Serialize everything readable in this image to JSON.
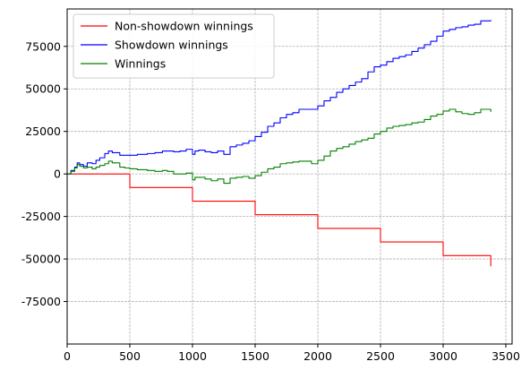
{
  "chart_data": {
    "type": "line",
    "title": "",
    "xlabel": "",
    "ylabel": "",
    "xlim": [
      0,
      3550
    ],
    "ylim": [
      -100000,
      97000
    ],
    "x_ticks": [
      0,
      500,
      1000,
      1500,
      2000,
      2500,
      3000,
      3500
    ],
    "y_ticks": [
      -75000,
      -50000,
      -25000,
      0,
      25000,
      50000,
      75000
    ],
    "grid": true,
    "legend_position": "top-left",
    "series": [
      {
        "name": "Non-showdown winnings",
        "color": "#ff0000",
        "x": [
          0,
          500,
          1000,
          1500,
          2000,
          2500,
          3000,
          3380
        ],
        "y": [
          0,
          -8000,
          -16000,
          -24000,
          -32000,
          -40000,
          -48000,
          -54300
        ]
      },
      {
        "name": "Showdown winnings",
        "color": "#0000ff",
        "x": [
          0,
          30,
          60,
          80,
          100,
          130,
          160,
          200,
          230,
          260,
          300,
          330,
          360,
          390,
          420,
          460,
          500,
          560,
          640,
          700,
          760,
          800,
          850,
          900,
          950,
          1000,
          1020,
          1050,
          1100,
          1150,
          1200,
          1250,
          1300,
          1350,
          1400,
          1450,
          1500,
          1550,
          1600,
          1650,
          1700,
          1750,
          1800,
          1850,
          1900,
          1950,
          2000,
          2050,
          2100,
          2150,
          2200,
          2250,
          2300,
          2350,
          2400,
          2450,
          2500,
          2550,
          2600,
          2650,
          2700,
          2750,
          2800,
          2850,
          2900,
          2950,
          3000,
          3050,
          3100,
          3150,
          3200,
          3250,
          3300,
          3380
        ],
        "y": [
          0,
          2000,
          4000,
          6500,
          5500,
          4500,
          6500,
          6000,
          8000,
          9500,
          12000,
          13500,
          12500,
          12500,
          11000,
          11000,
          11000,
          11500,
          12000,
          12500,
          13500,
          13500,
          13000,
          13500,
          14500,
          11500,
          13500,
          14000,
          13000,
          12500,
          13500,
          11500,
          16000,
          17000,
          18000,
          19500,
          22000,
          24500,
          28000,
          30000,
          33000,
          35000,
          36000,
          38000,
          38000,
          38000,
          40000,
          43000,
          45000,
          48000,
          50000,
          52000,
          54000,
          56000,
          60000,
          63000,
          64000,
          66000,
          68000,
          69000,
          70000,
          72000,
          74000,
          76000,
          78000,
          81000,
          84000,
          85000,
          86000,
          86500,
          87500,
          88000,
          90000,
          90500
        ]
      },
      {
        "name": "Winnings",
        "color": "#008000",
        "x": [
          0,
          30,
          60,
          80,
          100,
          130,
          160,
          200,
          230,
          260,
          300,
          330,
          360,
          390,
          420,
          460,
          500,
          560,
          640,
          700,
          760,
          800,
          850,
          900,
          950,
          1000,
          1020,
          1050,
          1100,
          1150,
          1200,
          1250,
          1300,
          1350,
          1400,
          1450,
          1500,
          1550,
          1600,
          1650,
          1700,
          1750,
          1800,
          1850,
          1900,
          1950,
          2000,
          2050,
          2100,
          2150,
          2200,
          2250,
          2300,
          2350,
          2400,
          2450,
          2500,
          2550,
          2600,
          2650,
          2700,
          2750,
          2800,
          2850,
          2900,
          2950,
          3000,
          3050,
          3100,
          3150,
          3200,
          3250,
          3300,
          3380
        ],
        "y": [
          0,
          1500,
          3500,
          5500,
          4500,
          3500,
          4000,
          3000,
          4000,
          5000,
          6000,
          7500,
          6500,
          6500,
          4000,
          3500,
          3000,
          2500,
          2000,
          1500,
          2000,
          1500,
          0,
          0,
          500,
          -3500,
          -2000,
          -2000,
          -3000,
          -4000,
          -3000,
          -5500,
          -2500,
          -2000,
          -1500,
          -2500,
          -1000,
          1000,
          3000,
          4000,
          6000,
          6500,
          7000,
          7500,
          7500,
          6000,
          8000,
          10500,
          13500,
          15000,
          16000,
          17500,
          19000,
          20000,
          21000,
          23500,
          25000,
          27000,
          28000,
          28500,
          29000,
          30000,
          30500,
          32000,
          34000,
          35000,
          37000,
          38000,
          36500,
          35500,
          35000,
          36000,
          38000,
          36500
        ]
      }
    ]
  }
}
